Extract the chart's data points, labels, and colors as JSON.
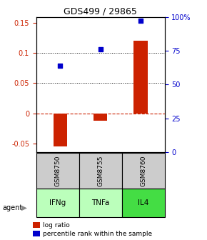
{
  "title": "GDS499 / 29865",
  "categories": [
    "IFNg",
    "TNFa",
    "IL4"
  ],
  "sample_ids": [
    "GSM8750",
    "GSM8755",
    "GSM8760"
  ],
  "log_ratios": [
    -0.055,
    -0.013,
    0.12
  ],
  "percentile_ranks_pct": [
    64,
    76,
    97
  ],
  "bar_color": "#cc2200",
  "dot_color": "#0000cc",
  "ylim_left": [
    -0.065,
    0.16
  ],
  "ylim_right": [
    0,
    100
  ],
  "yticks_left": [
    -0.05,
    0.0,
    0.05,
    0.1,
    0.15
  ],
  "yticks_right": [
    0,
    25,
    50,
    75,
    100
  ],
  "ytick_labels_right": [
    "0",
    "25",
    "50",
    "75",
    "100%"
  ],
  "hlines_dotted": [
    0.1,
    0.05
  ],
  "hline_zero_dashed": 0.0,
  "agent_colors": [
    "#bbffbb",
    "#bbffbb",
    "#44dd44"
  ],
  "gsm_bg_color": "#cccccc",
  "bar_width": 0.35,
  "legend_items": [
    "log ratio",
    "percentile rank within the sample"
  ]
}
